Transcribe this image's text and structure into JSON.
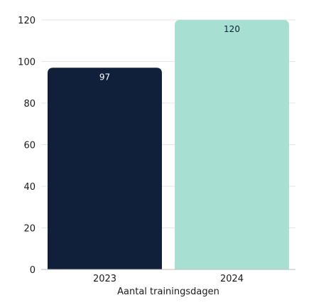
{
  "chart_data": {
    "type": "bar",
    "title": "",
    "xlabel": "Aantal trainingsdagen",
    "ylabel": "",
    "categories": [
      "2023",
      "2024"
    ],
    "values": [
      97,
      120
    ],
    "data_labels": [
      "97",
      "120"
    ],
    "bar_colors": [
      "#10203A",
      "#A8DFD3"
    ],
    "data_label_colors": [
      "#FFFFFF",
      "#10203A"
    ],
    "ylim": [
      0,
      120
    ],
    "yticks": [
      "0",
      "20",
      "40",
      "60",
      "80",
      "100",
      "120"
    ],
    "grid": true,
    "legend": "none"
  },
  "colors": {
    "text": "#1A1A1A",
    "grid": "#E6E6E6",
    "axis": "#BDBDBD",
    "background": "#FFFFFF"
  }
}
